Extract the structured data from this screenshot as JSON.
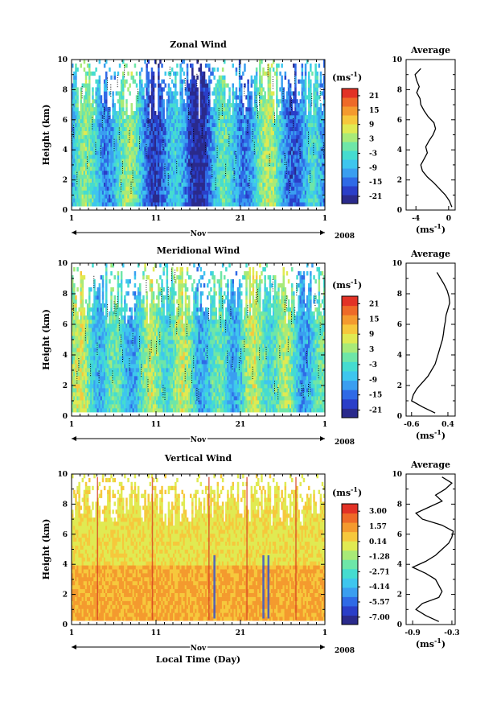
{
  "figure": {
    "x_axis_label": "Local Time (Day)",
    "year_label": "2008",
    "month_label": "Nov",
    "unit_label": "(ms",
    "unit_exponent": "-1",
    "unit_close": ")",
    "average_title": "Average",
    "height_label": "Height (km)"
  },
  "chart_data": [
    {
      "type": "heatmap",
      "title": "Zonal Wind",
      "xlabel": "Nov",
      "ylabel": "Height (km)",
      "x_ticks": [
        "1",
        "11",
        "21",
        "1"
      ],
      "y_ticks": [
        "0",
        "2",
        "4",
        "6",
        "8",
        "10"
      ],
      "xlim_days": [
        1,
        31
      ],
      "ylim_km": [
        0,
        10
      ],
      "colorbar": {
        "unit": "ms-1",
        "ticks": [
          "21",
          "15",
          "9",
          "3",
          "-3",
          "-9",
          "-15",
          "-21"
        ],
        "range": [
          -24,
          24
        ]
      },
      "average_profile": {
        "title": "Average",
        "xlabel": "ms-1",
        "x_ticks": [
          "-4",
          "0"
        ],
        "xlim": [
          -5.2,
          0.8
        ],
        "y_ticks": [
          "0",
          "2",
          "4",
          "6",
          "8",
          "10"
        ],
        "height": [
          0.2,
          0.6,
          1.0,
          1.4,
          1.8,
          2.2,
          2.6,
          3.0,
          3.4,
          3.8,
          4.2,
          4.6,
          5.0,
          5.4,
          5.8,
          6.2,
          6.6,
          7.0,
          7.4,
          7.8,
          8.2,
          8.6,
          9.0,
          9.4
        ],
        "speed": [
          0.4,
          0.1,
          -0.4,
          -1.1,
          -1.8,
          -2.6,
          -3.2,
          -3.4,
          -3.0,
          -2.6,
          -2.8,
          -2.4,
          -1.9,
          -1.6,
          -1.8,
          -2.5,
          -3.0,
          -3.4,
          -3.5,
          -3.9,
          -3.6,
          -3.9,
          -4.1,
          -3.4
        ]
      }
    },
    {
      "type": "heatmap",
      "title": "Meridional Wind",
      "xlabel": "Nov",
      "ylabel": "Height (km)",
      "x_ticks": [
        "1",
        "11",
        "21",
        "1"
      ],
      "y_ticks": [
        "0",
        "2",
        "4",
        "6",
        "8",
        "10"
      ],
      "xlim_days": [
        1,
        31
      ],
      "ylim_km": [
        0,
        10
      ],
      "colorbar": {
        "unit": "ms-1",
        "ticks": [
          "21",
          "15",
          "9",
          "3",
          "-3",
          "-9",
          "-15",
          "-21"
        ],
        "range": [
          -24,
          24
        ]
      },
      "average_profile": {
        "title": "Average",
        "xlabel": "ms-1",
        "x_ticks": [
          "-0.6",
          "0.4"
        ],
        "xlim": [
          -0.75,
          0.6
        ],
        "y_ticks": [
          "0",
          "2",
          "4",
          "6",
          "8",
          "10"
        ],
        "height": [
          0.2,
          0.6,
          1.0,
          1.4,
          1.8,
          2.2,
          2.6,
          3.0,
          3.4,
          3.8,
          4.2,
          4.6,
          5.0,
          5.4,
          5.8,
          6.2,
          6.6,
          7.0,
          7.4,
          7.8,
          8.2,
          8.6,
          9.0,
          9.4
        ],
        "speed": [
          0.05,
          -0.3,
          -0.6,
          -0.55,
          -0.45,
          -0.3,
          -0.15,
          -0.05,
          0.05,
          0.1,
          0.15,
          0.2,
          0.25,
          0.28,
          0.3,
          0.33,
          0.35,
          0.4,
          0.45,
          0.43,
          0.38,
          0.3,
          0.2,
          0.1
        ]
      }
    },
    {
      "type": "heatmap",
      "title": "Vertical Wind",
      "xlabel": "Nov",
      "ylabel": "Height (km)",
      "x_ticks": [
        "1",
        "11",
        "21",
        "1"
      ],
      "y_ticks": [
        "0",
        "2",
        "4",
        "6",
        "8",
        "10"
      ],
      "xlim_days": [
        1,
        31
      ],
      "ylim_km": [
        0,
        10
      ],
      "colorbar": {
        "unit": "ms-1",
        "ticks": [
          "3.00",
          "1.57",
          "0.14",
          "-1.28",
          "-2.71",
          "-4.14",
          "-5.57",
          "-7.00"
        ],
        "range": [
          -7.7,
          3.7
        ]
      },
      "average_profile": {
        "title": "Average",
        "xlabel": "ms-1",
        "x_ticks": [
          "-0.9",
          "-0.3"
        ],
        "xlim": [
          -1.0,
          -0.25
        ],
        "y_ticks": [
          "0",
          "2",
          "4",
          "6",
          "8",
          "10"
        ],
        "height": [
          0.2,
          0.6,
          1.0,
          1.4,
          1.8,
          2.2,
          2.6,
          3.0,
          3.4,
          3.8,
          4.2,
          4.6,
          5.0,
          5.4,
          5.8,
          6.2,
          6.6,
          7.0,
          7.4,
          7.8,
          8.2,
          8.6,
          9.0,
          9.4,
          9.8
        ],
        "speed": [
          -0.5,
          -0.7,
          -0.85,
          -0.75,
          -0.5,
          -0.45,
          -0.5,
          -0.55,
          -0.7,
          -0.9,
          -0.7,
          -0.55,
          -0.45,
          -0.35,
          -0.3,
          -0.28,
          -0.45,
          -0.75,
          -0.85,
          -0.65,
          -0.45,
          -0.55,
          -0.4,
          -0.3,
          -0.45
        ]
      }
    }
  ]
}
